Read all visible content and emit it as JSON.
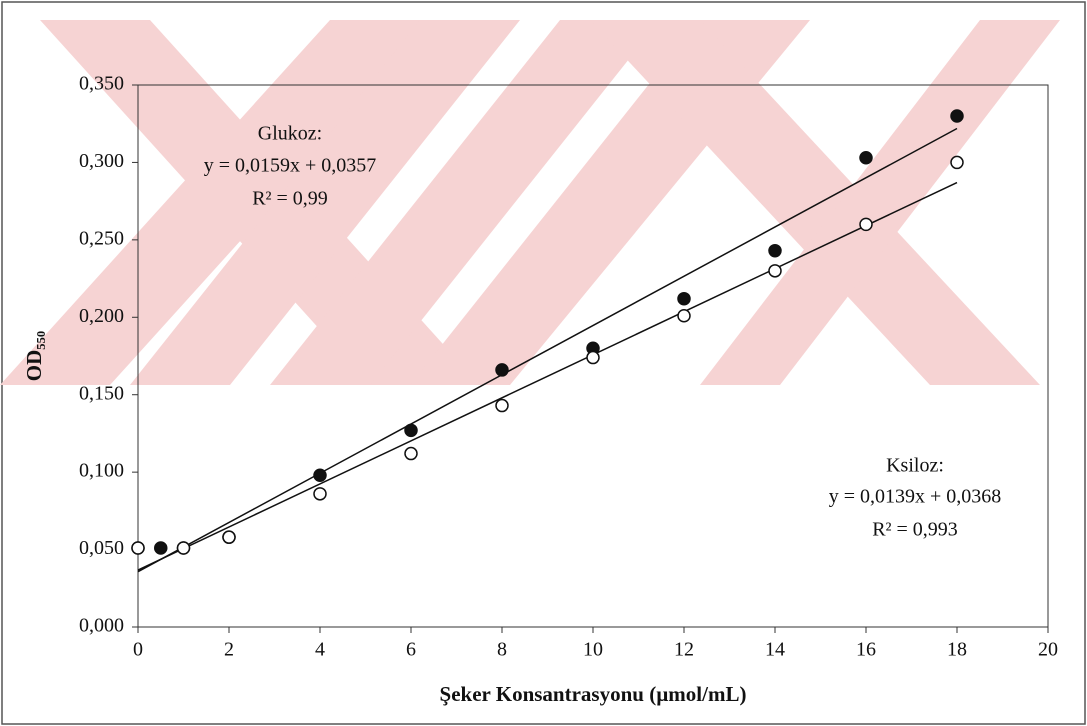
{
  "chart_data": {
    "type": "scatter",
    "x_label": "Şeker Konsantrasyonu (µmol/mL)",
    "y_label": "OD₅₅₀",
    "xlim": [
      0,
      20
    ],
    "xticks": [
      0,
      2,
      4,
      6,
      8,
      10,
      12,
      14,
      16,
      18,
      20
    ],
    "ylim": [
      0,
      0.35
    ],
    "yticks": [
      {
        "value": 0,
        "label": "0,000"
      },
      {
        "value": 0.05,
        "label": "0,050"
      },
      {
        "value": 0.1,
        "label": "0,100"
      },
      {
        "value": 0.15,
        "label": "0,150"
      },
      {
        "value": 0.2,
        "label": "0,200"
      },
      {
        "value": 0.25,
        "label": "0,250"
      },
      {
        "value": 0.3,
        "label": "0,300"
      },
      {
        "value": 0.35,
        "label": "0,350"
      }
    ],
    "series": [
      {
        "color": "#111111",
        "fill": "#111111",
        "x": [
          0,
          0.5,
          1,
          2,
          4,
          6,
          8,
          10,
          12,
          14,
          16,
          18
        ],
        "values": [
          0.051,
          0.051,
          0.051,
          0.058,
          0.098,
          0.127,
          0.166,
          0.18,
          0.212,
          0.243,
          0.303,
          0.33
        ],
        "trendline": {
          "slope": 0.0159,
          "intercept": 0.0357
        }
      },
      {
        "color": "#111111",
        "fill": "#ffffff",
        "x": [
          0,
          1,
          2,
          4,
          6,
          8,
          10,
          12,
          14,
          16,
          18
        ],
        "values": [
          0.051,
          0.051,
          0.058,
          0.086,
          0.112,
          0.143,
          0.174,
          0.201,
          0.23,
          0.26,
          0.3
        ],
        "trendline": {
          "slope": 0.0139,
          "intercept": 0.0368
        }
      }
    ],
    "annotations": [
      [
        "Glukoz:",
        "y = 0,0159x + 0,0357",
        "R² = 0,99"
      ],
      [
        "Ksiloz:",
        "y = 0,0139x + 0,0368",
        "R² = 0,993"
      ]
    ]
  }
}
